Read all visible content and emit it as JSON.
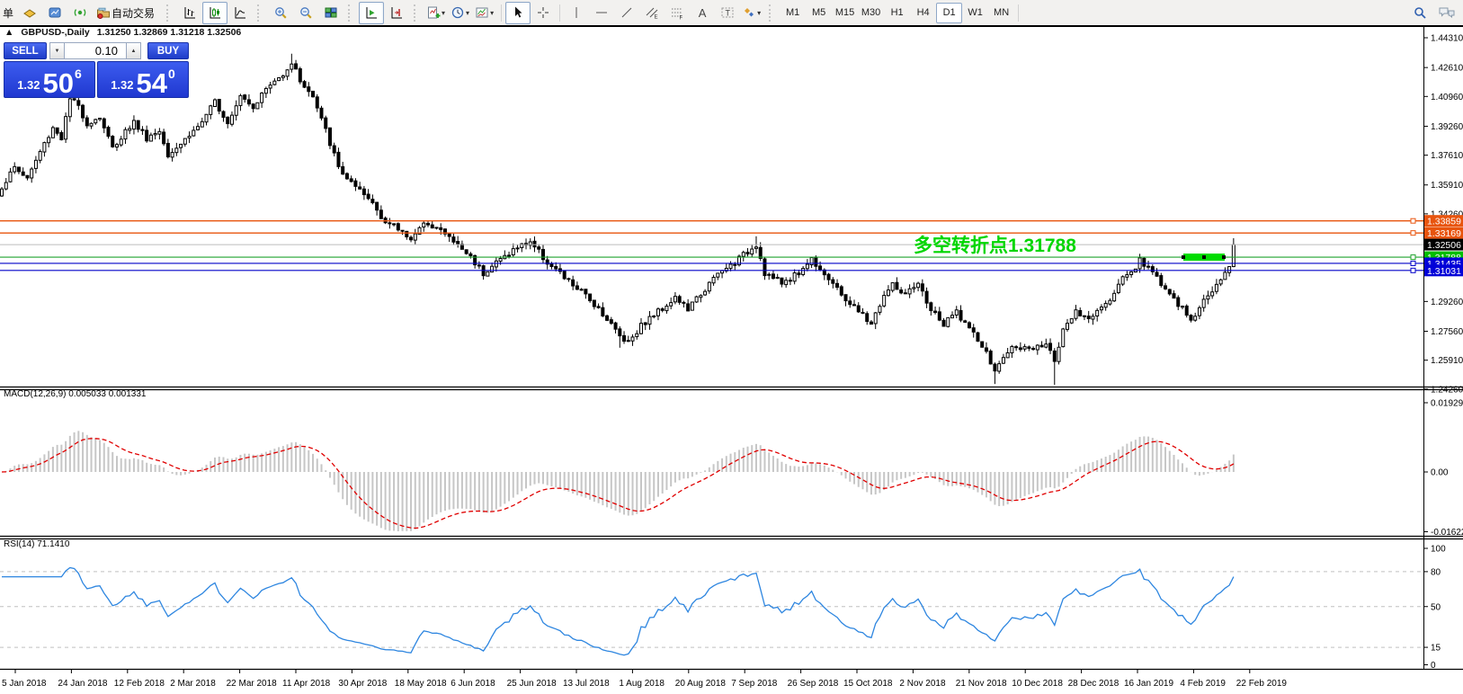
{
  "toolbar": {
    "partial_menu_label": "单",
    "autotrading_label": "自动交易",
    "text_tool_label": "A",
    "label_tool_letter": "T",
    "timeframes": [
      "M1",
      "M5",
      "M15",
      "M30",
      "H1",
      "H4",
      "D1",
      "W1",
      "MN"
    ],
    "selected_timeframe": "D1"
  },
  "chart_header": {
    "collapse_glyph": "▲",
    "title": "GBPUSD-,Daily",
    "ohlc": "1.31250 1.32869 1.31218 1.32506"
  },
  "trade_panel": {
    "sell_label": "SELL",
    "buy_label": "BUY",
    "volume": "0.10",
    "spin_down": "▼",
    "spin_up": "▲",
    "sell_price": {
      "base": "1.32",
      "big": "50",
      "sup": "6"
    },
    "buy_price": {
      "base": "1.32",
      "big": "54",
      "sup": "0"
    }
  },
  "annotation": {
    "text": "多空转折点1.31788",
    "color": "#00d600"
  },
  "indicators": {
    "macd_label": "MACD(12,26,9) 0.005033 0.001331",
    "rsi_label": "RSI(14) 71.1410"
  },
  "price_axis": {
    "ticks": [
      {
        "price": 1.4431,
        "label": "1.44310"
      },
      {
        "price": 1.4261,
        "label": "1.42610"
      },
      {
        "price": 1.4096,
        "label": "1.40960"
      },
      {
        "price": 1.3926,
        "label": "1.39260"
      },
      {
        "price": 1.3761,
        "label": "1.37610"
      },
      {
        "price": 1.3591,
        "label": "1.35910"
      },
      {
        "price": 1.3426,
        "label": "1.34260"
      },
      {
        "price": 1.2926,
        "label": "1.29260"
      },
      {
        "price": 1.2756,
        "label": "1.27560"
      },
      {
        "price": 1.2591,
        "label": "1.25910"
      },
      {
        "price": 1.2426,
        "label": "1.24260"
      }
    ],
    "tags": [
      {
        "label": "1.33859",
        "price": 1.33859,
        "bg": "#e8540e",
        "fg": "#ffffff"
      },
      {
        "label": "1.33169",
        "price": 1.33169,
        "bg": "#e8540e",
        "fg": "#ffffff"
      },
      {
        "label": "1.32506",
        "price": 1.32506,
        "bg": "#000000",
        "fg": "#ffffff"
      },
      {
        "label": "1.31788",
        "price": 1.31788,
        "bg": "#00be00",
        "fg": "#ffffff"
      },
      {
        "label": "1.31435",
        "price": 1.31435,
        "bg": "#0000d8",
        "fg": "#ffffff"
      },
      {
        "label": "1.31031",
        "price": 1.31031,
        "bg": "#0000d8",
        "fg": "#ffffff"
      }
    ]
  },
  "macd_axis": [
    {
      "v": 0.019292,
      "label": "0.019292"
    },
    {
      "v": 0.0,
      "label": "0.00"
    },
    {
      "v": -0.016227,
      "label": "-0.016227"
    }
  ],
  "rsi_axis": [
    {
      "v": 100,
      "label": "100"
    },
    {
      "v": 80,
      "label": "80"
    },
    {
      "v": 50,
      "label": "50"
    },
    {
      "v": 15,
      "label": "15"
    },
    {
      "v": 0,
      "label": "0"
    }
  ],
  "rsi_levels": [
    80,
    50,
    15
  ],
  "date_axis": [
    "5 Jan 2018",
    "24 Jan 2018",
    "12 Feb 2018",
    "2 Mar 2018",
    "22 Mar 2018",
    "11 Apr 2018",
    "30 Apr 2018",
    "18 May 2018",
    "6 Jun 2018",
    "25 Jun 2018",
    "13 Jul 2018",
    "1 Aug 2018",
    "20 Aug 2018",
    "7 Sep 2018",
    "26 Sep 2018",
    "15 Oct 2018",
    "2 Nov 2018",
    "21 Nov 2018",
    "10 Dec 2018",
    "28 Dec 2018",
    "16 Jan 2019",
    "4 Feb 2019",
    "22 Feb 2019"
  ],
  "chart_data": {
    "type": "candlestick",
    "symbol": "GBPUSD-",
    "timeframe": "Daily",
    "bars": 290,
    "axis_top": 1.4431,
    "axis_bottom": 1.2426,
    "last_bar": {
      "open": 1.3125,
      "high": 1.32869,
      "low": 1.31218,
      "close": 1.32506
    },
    "close_keypoints": [
      [
        0,
        1.358
      ],
      [
        3,
        1.369
      ],
      [
        6,
        1.363
      ],
      [
        9,
        1.378
      ],
      [
        12,
        1.392
      ],
      [
        14,
        1.386
      ],
      [
        16,
        1.408
      ],
      [
        18,
        1.404
      ],
      [
        20,
        1.394
      ],
      [
        23,
        1.398
      ],
      [
        26,
        1.38
      ],
      [
        29,
        1.39
      ],
      [
        31,
        1.395
      ],
      [
        34,
        1.386
      ],
      [
        37,
        1.39
      ],
      [
        39,
        1.377
      ],
      [
        42,
        1.383
      ],
      [
        45,
        1.39
      ],
      [
        48,
        1.398
      ],
      [
        50,
        1.407
      ],
      [
        53,
        1.395
      ],
      [
        56,
        1.411
      ],
      [
        59,
        1.404
      ],
      [
        62,
        1.414
      ],
      [
        65,
        1.42
      ],
      [
        68,
        1.429
      ],
      [
        70,
        1.419
      ],
      [
        73,
        1.409
      ],
      [
        76,
        1.39
      ],
      [
        79,
        1.369
      ],
      [
        83,
        1.357
      ],
      [
        87,
        1.349
      ],
      [
        90,
        1.338
      ],
      [
        93,
        1.334
      ],
      [
        96,
        1.329
      ],
      [
        100,
        1.338
      ],
      [
        103,
        1.333
      ],
      [
        106,
        1.327
      ],
      [
        110,
        1.318
      ],
      [
        113,
        1.309
      ],
      [
        116,
        1.315
      ],
      [
        120,
        1.322
      ],
      [
        124,
        1.327
      ],
      [
        128,
        1.315
      ],
      [
        132,
        1.306
      ],
      [
        136,
        1.298
      ],
      [
        140,
        1.289
      ],
      [
        145,
        1.273
      ],
      [
        147,
        1.27
      ],
      [
        150,
        1.279
      ],
      [
        154,
        1.287
      ],
      [
        158,
        1.295
      ],
      [
        161,
        1.288
      ],
      [
        164,
        1.297
      ],
      [
        168,
        1.308
      ],
      [
        172,
        1.315
      ],
      [
        175,
        1.321
      ],
      [
        177,
        1.3255
      ],
      [
        179,
        1.309
      ],
      [
        183,
        1.303
      ],
      [
        187,
        1.309
      ],
      [
        190,
        1.317
      ],
      [
        193,
        1.309
      ],
      [
        196,
        1.299
      ],
      [
        200,
        1.289
      ],
      [
        204,
        1.28
      ],
      [
        207,
        1.296
      ],
      [
        209,
        1.302
      ],
      [
        212,
        1.296
      ],
      [
        215,
        1.302
      ],
      [
        218,
        1.288
      ],
      [
        221,
        1.279
      ],
      [
        224,
        1.287
      ],
      [
        227,
        1.277
      ],
      [
        230,
        1.267
      ],
      [
        232,
        1.258
      ],
      [
        233,
        1.252
      ],
      [
        235,
        1.261
      ],
      [
        238,
        1.268
      ],
      [
        241,
        1.264
      ],
      [
        244,
        1.267
      ],
      [
        246,
        1.266
      ],
      [
        247,
        1.259
      ],
      [
        249,
        1.277
      ],
      [
        252,
        1.286
      ],
      [
        255,
        1.282
      ],
      [
        258,
        1.291
      ],
      [
        261,
        1.297
      ],
      [
        263,
        1.307
      ],
      [
        266,
        1.312
      ],
      [
        267,
        1.317
      ],
      [
        269,
        1.311
      ],
      [
        271,
        1.307
      ],
      [
        273,
        1.3
      ],
      [
        275,
        1.293
      ],
      [
        277,
        1.288
      ],
      [
        279,
        1.282
      ],
      [
        281,
        1.289
      ],
      [
        283,
        1.296
      ],
      [
        285,
        1.302
      ],
      [
        287,
        1.308
      ],
      [
        288,
        1.3125
      ],
      [
        289,
        1.32506
      ]
    ],
    "wick_overrides": {
      "16": {
        "high": 1.4152
      },
      "68": {
        "high": 1.434
      },
      "145": {
        "low": 1.2662
      },
      "177": {
        "high": 1.3298
      },
      "233": {
        "low": 1.2455
      },
      "247": {
        "low": 1.245
      }
    },
    "levels": [
      {
        "price": 1.33859,
        "color": "#e8540e",
        "width": 1.4,
        "marker": true
      },
      {
        "price": 1.33169,
        "color": "#e8540e",
        "width": 1.4,
        "marker": true
      },
      {
        "price": 1.32506,
        "color": "#bdbdbd",
        "width": 1.0,
        "marker": false
      },
      {
        "price": 1.31788,
        "color": "#1fa32e",
        "width": 1.2,
        "marker": true
      },
      {
        "price": 1.31435,
        "color": "#0000c8",
        "width": 1.2,
        "marker": true
      },
      {
        "price": 1.31031,
        "color": "#0000c8",
        "width": 1.2,
        "marker": true
      }
    ],
    "highlight_segment": {
      "price": 1.31788,
      "color": "#00dc00"
    },
    "macd": {
      "fast": 12,
      "slow": 26,
      "signal": 9,
      "hist_color": "#c6c6c6",
      "signal_color": "#e00000"
    },
    "rsi": {
      "period": 14,
      "color": "#2e86e0",
      "level_color": "#c0c0c0"
    }
  }
}
